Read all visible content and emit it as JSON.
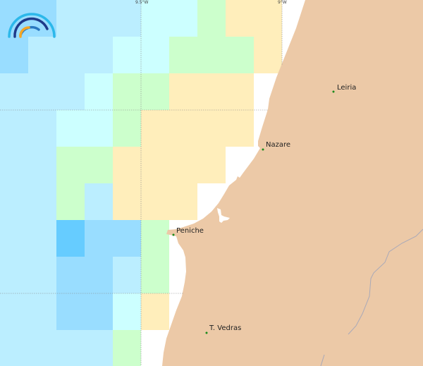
{
  "map": {
    "graticule": {
      "longitude_labels": [
        "9.5°W",
        "9°W"
      ]
    },
    "cities": [
      {
        "name": "Leiria"
      },
      {
        "name": "Nazare"
      },
      {
        "name": "Peniche"
      },
      {
        "name": "T. Vedras"
      }
    ],
    "colors": {
      "land": "#ecc9a7",
      "sea": "#ffffff",
      "city_marker": "#1a8a1a",
      "river": "#a9a9b8",
      "graticule": "#888888",
      "classes": {
        "D": "#66ccff",
        "A": "#99ddff",
        "B": "#bbeeff",
        "C": "#ccffff",
        "G": "#ccffcc",
        "Y": "#ffeebb"
      }
    },
    "cells": [
      "AABBBCCGYY",
      "ABBBCCGGGY",
      "BBBCGGYYY.",
      "BBCCGYYYY.",
      "BBGGYYYY..",
      "BBGBYYY...",
      "BBDAAG....",
      "BBAABG....",
      "BBAACY....",
      "BBBBG....."
    ],
    "logo": "wave-arc-logo"
  }
}
